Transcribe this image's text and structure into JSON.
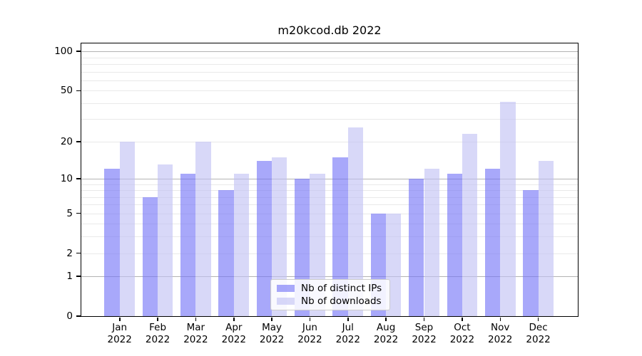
{
  "figure": {
    "title": "m20kcod.db 2022",
    "background": "#ffffff"
  },
  "chart_data": {
    "type": "bar",
    "title": "m20kcod.db 2022",
    "x_year": "2022",
    "months": [
      "Jan",
      "Feb",
      "Mar",
      "Apr",
      "May",
      "Jun",
      "Jul",
      "Aug",
      "Sep",
      "Oct",
      "Nov",
      "Dec"
    ],
    "series": [
      {
        "name": "Nb of distinct IPs",
        "color": "#a8a8f4",
        "fill": "rgba(115,115,247,0.62)",
        "values": [
          12,
          7,
          11,
          8,
          14,
          10,
          15,
          5,
          10,
          11,
          12,
          8
        ]
      },
      {
        "name": "Nb of downloads",
        "color": "#d8d8f8",
        "fill": "rgba(192,192,244,0.62)",
        "values": [
          20,
          13,
          20,
          11,
          15,
          11,
          26,
          5,
          12,
          23,
          41,
          14
        ]
      }
    ],
    "yscale": "log1p",
    "ylim": [
      0,
      115
    ],
    "y_ticks": [
      0,
      1,
      2,
      5,
      10,
      20,
      50,
      100
    ],
    "gridlines_major": [
      1,
      10,
      100
    ],
    "gridlines_minor": [
      2,
      3,
      4,
      5,
      6,
      7,
      8,
      9,
      20,
      30,
      40,
      50,
      60,
      70,
      80,
      90
    ],
    "grid": true,
    "legend_position": "lower center"
  },
  "colors": {
    "grid_major": "#b3b3b3",
    "grid_minor": "#e9e9e9",
    "spine": "#000000",
    "legend_border": "#cccccc"
  }
}
